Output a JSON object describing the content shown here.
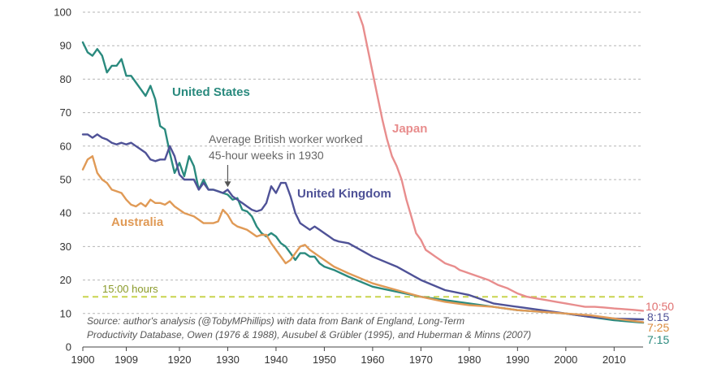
{
  "chart_data": {
    "type": "line",
    "title": "",
    "xlabel": "",
    "ylabel": "",
    "xlim": [
      1900,
      2016
    ],
    "ylim": [
      0,
      100
    ],
    "grid": "horizontal-dashed",
    "x_ticks": [
      "1900",
      "1909",
      "1920",
      "1930",
      "1940",
      "1950",
      "1960",
      "1970",
      "1980",
      "1990",
      "2000",
      "2010"
    ],
    "x_tick_values": [
      1900,
      1909,
      1920,
      1930,
      1940,
      1950,
      1960,
      1970,
      1980,
      1990,
      2000,
      2010
    ],
    "y_ticks": [
      "0",
      "10",
      "20",
      "30",
      "40",
      "50",
      "60",
      "70",
      "80",
      "90",
      "100"
    ],
    "y_tick_values": [
      0,
      10,
      20,
      30,
      40,
      50,
      60,
      70,
      80,
      90,
      100
    ],
    "reference_line": {
      "value": 15,
      "label": "15:00 hours",
      "color": "#c8d44e"
    },
    "series": [
      {
        "name": "Japan",
        "color": "#e88d8d",
        "end_label": "10:50",
        "x": [
          1957,
          1958,
          1959,
          1960,
          1961,
          1962,
          1963,
          1964,
          1965,
          1966,
          1967,
          1968,
          1969,
          1970,
          1971,
          1972,
          1973,
          1974,
          1975,
          1976,
          1977,
          1978,
          1979,
          1980,
          1982,
          1984,
          1986,
          1988,
          1990,
          1992,
          1994,
          1996,
          1998,
          2000,
          2002,
          2004,
          2006,
          2008,
          2010,
          2012,
          2014,
          2016
        ],
        "y": [
          100,
          96,
          89,
          82,
          75,
          68,
          62,
          57,
          54,
          50,
          44,
          39,
          34,
          32,
          29,
          28,
          27,
          26,
          25,
          24.5,
          24,
          23,
          22.5,
          22,
          21,
          20,
          18.5,
          17.5,
          16,
          15,
          14.5,
          14,
          13.5,
          13,
          12.5,
          12,
          12,
          11.8,
          11.5,
          11.3,
          11.1,
          10.83
        ]
      },
      {
        "name": "United States",
        "color": "#2a8a7e",
        "end_label": "7:15",
        "x": [
          1900,
          1901,
          1902,
          1903,
          1904,
          1905,
          1906,
          1907,
          1908,
          1909,
          1910,
          1911,
          1912,
          1913,
          1914,
          1915,
          1916,
          1917,
          1918,
          1919,
          1920,
          1921,
          1922,
          1923,
          1924,
          1925,
          1926,
          1927,
          1928,
          1929,
          1930,
          1931,
          1932,
          1933,
          1934,
          1935,
          1936,
          1937,
          1938,
          1939,
          1940,
          1941,
          1942,
          1943,
          1944,
          1945,
          1946,
          1947,
          1948,
          1949,
          1950,
          1952,
          1955,
          1960,
          1965,
          1970,
          1975,
          1980,
          1985,
          1990,
          1995,
          2000,
          2005,
          2010,
          2016
        ],
        "y": [
          91,
          88,
          87,
          89,
          87,
          82,
          84,
          84,
          86,
          81,
          81,
          79,
          77,
          75,
          78,
          74,
          66,
          65,
          58,
          52,
          55,
          51,
          57,
          54,
          47,
          50,
          47,
          47,
          46.5,
          46,
          45.5,
          44,
          44.5,
          41,
          40.5,
          39,
          36,
          34,
          33,
          34,
          33,
          31,
          30,
          28,
          26,
          28,
          28,
          27,
          27,
          25,
          24,
          23,
          21,
          18,
          16.5,
          15,
          14,
          13,
          12,
          11,
          10.5,
          10,
          9,
          8,
          7.25
        ]
      },
      {
        "name": "United Kingdom",
        "color": "#4f5297",
        "end_label": "8:15",
        "x": [
          1900,
          1901,
          1902,
          1903,
          1904,
          1905,
          1906,
          1907,
          1908,
          1909,
          1910,
          1911,
          1912,
          1913,
          1914,
          1915,
          1916,
          1917,
          1918,
          1919,
          1920,
          1921,
          1922,
          1923,
          1924,
          1925,
          1926,
          1927,
          1928,
          1929,
          1930,
          1931,
          1932,
          1933,
          1934,
          1935,
          1936,
          1937,
          1938,
          1939,
          1940,
          1941,
          1942,
          1943,
          1944,
          1945,
          1946,
          1947,
          1948,
          1949,
          1950,
          1951,
          1952,
          1953,
          1955,
          1960,
          1965,
          1970,
          1975,
          1980,
          1985,
          1990,
          1995,
          2000,
          2005,
          2010,
          2016
        ],
        "y": [
          63.5,
          63.5,
          62.5,
          63.5,
          62.5,
          62,
          61,
          60.5,
          61,
          60.5,
          61,
          60,
          59,
          58,
          56,
          55.5,
          56,
          56,
          60,
          57,
          51.5,
          50,
          50,
          50,
          47,
          49,
          47,
          47,
          46.5,
          46,
          47,
          45,
          44,
          43,
          42,
          41,
          40.5,
          41,
          43,
          48,
          46,
          49,
          49,
          45,
          40,
          37,
          36,
          35,
          36,
          35,
          34,
          33,
          32,
          31.5,
          31,
          27,
          24,
          20,
          17,
          15.5,
          13,
          12,
          11,
          10,
          9,
          8.5,
          8.25
        ]
      },
      {
        "name": "Australia",
        "color": "#e09a56",
        "end_label": "7:25",
        "x": [
          1900,
          1901,
          1902,
          1903,
          1904,
          1905,
          1906,
          1907,
          1908,
          1909,
          1910,
          1911,
          1912,
          1913,
          1914,
          1915,
          1916,
          1917,
          1918,
          1919,
          1920,
          1921,
          1922,
          1923,
          1924,
          1925,
          1926,
          1927,
          1928,
          1929,
          1930,
          1931,
          1932,
          1933,
          1934,
          1935,
          1936,
          1937,
          1938,
          1939,
          1940,
          1941,
          1942,
          1943,
          1944,
          1945,
          1946,
          1947,
          1948,
          1949,
          1950,
          1952,
          1955,
          1960,
          1965,
          1970,
          1975,
          1980,
          1985,
          1990,
          1995,
          2000,
          2005,
          2010,
          2016
        ],
        "y": [
          53,
          56,
          57,
          52,
          50,
          49,
          47,
          46.5,
          46,
          44,
          42.5,
          42,
          43,
          42,
          44,
          43,
          43,
          42.5,
          43.5,
          42,
          41,
          40,
          39.5,
          39,
          38,
          37,
          37,
          37,
          37.5,
          41,
          39.5,
          37,
          36,
          35.5,
          35,
          34,
          33,
          33.5,
          33.5,
          31,
          29,
          27,
          25,
          26,
          28,
          30,
          30.5,
          29,
          28,
          27,
          26,
          24,
          22,
          19,
          17,
          15,
          13.5,
          12.5,
          12,
          11,
          10.5,
          10,
          9.5,
          8.5,
          7.42
        ]
      }
    ],
    "series_labels": {
      "United States": "United States",
      "United Kingdom": "United Kingdom",
      "Japan": "Japan",
      "Australia": "Australia"
    },
    "annotation": {
      "line1": "Average British worker worked",
      "line2": "45-hour weeks in 1930",
      "arrow_x": 1930,
      "arrow_y": 47.5
    },
    "source": {
      "line1": "Source: author's analysis (@TobyMPhillips) with data from Bank of England, Long-Term",
      "line2": "Productivity Database, Owen (1976 & 1988), Ausubel & Grübler (1995), and Huberman & Minns (2007)"
    }
  }
}
